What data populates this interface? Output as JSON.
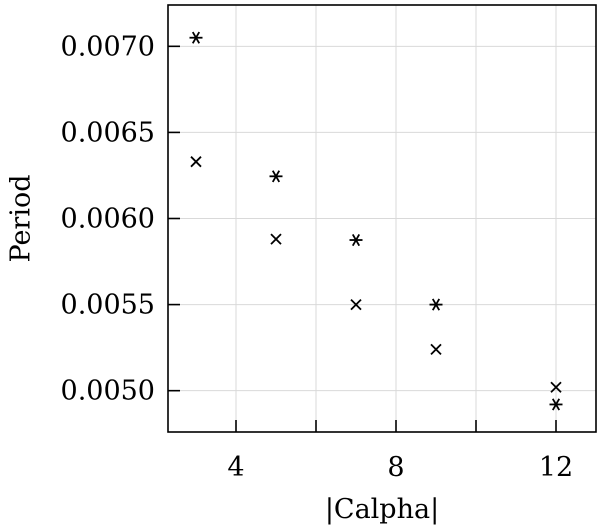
{
  "chart_data": {
    "type": "scatter",
    "xlabel": "|Calpha|",
    "ylabel": "Period",
    "xlim": [
      2.3,
      13.0
    ],
    "ylim": [
      0.00476,
      0.00724
    ],
    "grid": true,
    "x_ticks": [
      4,
      8,
      12
    ],
    "x_tick_labels": [
      "4",
      "8",
      "12"
    ],
    "x_minor_ticks": [
      6,
      10
    ],
    "y_ticks": [
      0.005,
      0.0055,
      0.006,
      0.0065,
      0.007
    ],
    "y_tick_labels": [
      "0.0050",
      "0.0055",
      "0.0060",
      "0.0065",
      "0.0070"
    ],
    "series": [
      {
        "marker": "asterisk",
        "x": [
          3,
          5,
          7,
          9,
          12
        ],
        "y": [
          0.00705,
          0.006245,
          0.005875,
          0.0055,
          0.00492
        ]
      },
      {
        "marker": "cross",
        "x": [
          3,
          5,
          7,
          9,
          12
        ],
        "y": [
          0.00633,
          0.00588,
          0.0055,
          0.00524,
          0.00502
        ]
      }
    ]
  }
}
